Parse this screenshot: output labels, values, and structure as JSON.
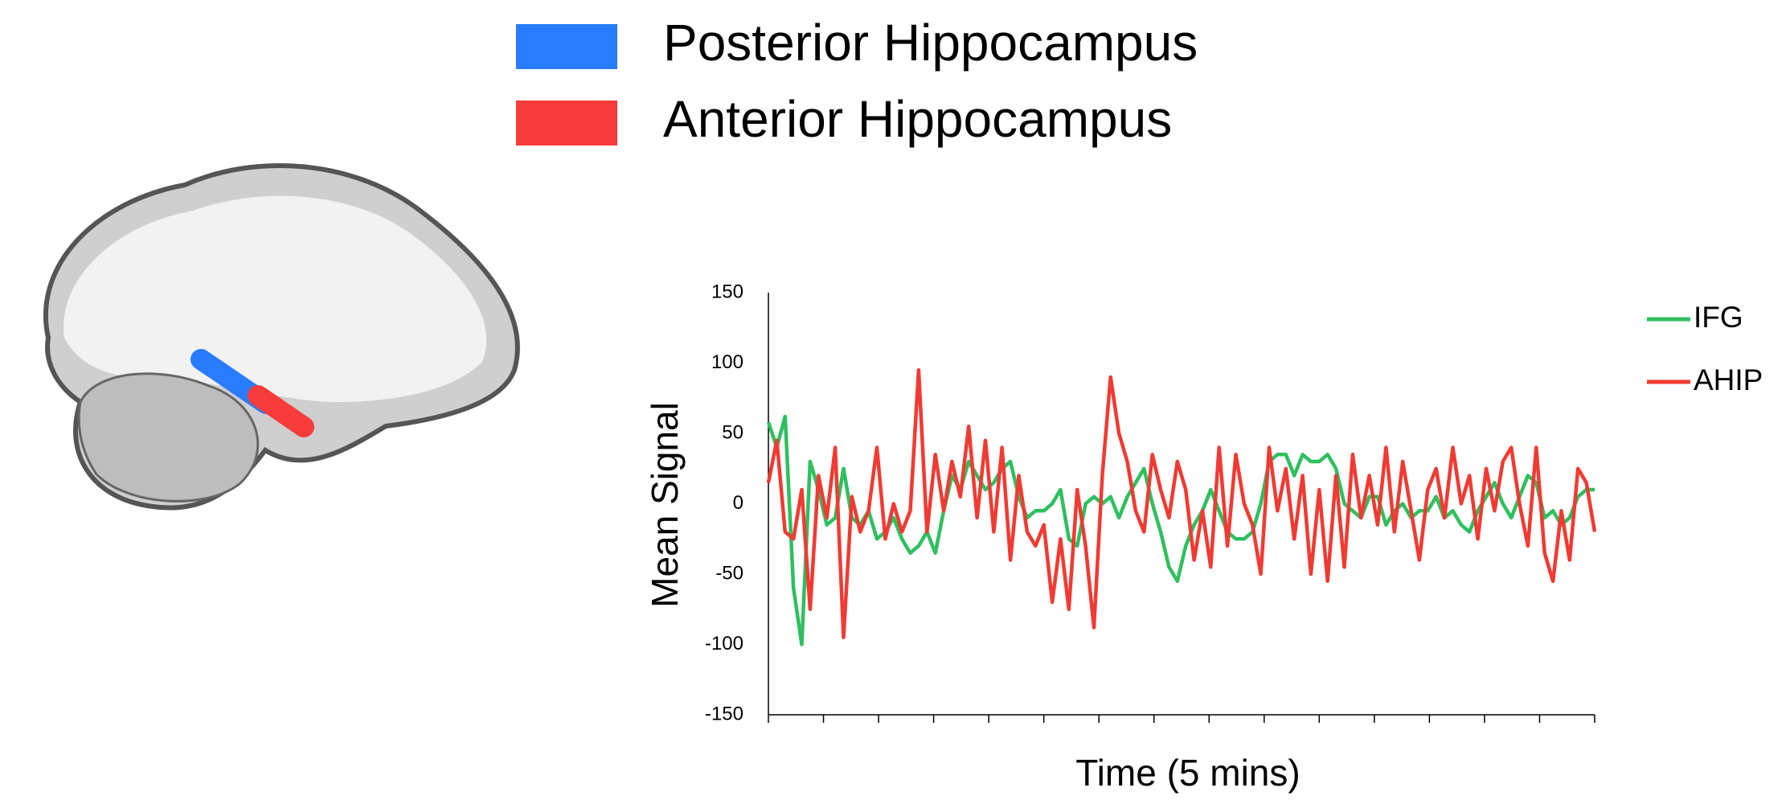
{
  "legend": [
    {
      "label": "Posterior Hippocampus",
      "color": "#2a7cff"
    },
    {
      "label": "Anterior Hippocampus",
      "color": "#f73b3b"
    }
  ],
  "chart_data": {
    "type": "line",
    "y_label": "Mean Signal",
    "x_label": "Time (5 mins)",
    "ylim": [
      -150,
      150
    ],
    "yticks": [
      -150,
      -100,
      -50,
      0,
      50,
      100,
      150
    ],
    "grid": false,
    "legend_position": "right",
    "series": [
      {
        "name": "IFG",
        "color": "#2fbf5f",
        "values": [
          58,
          40,
          62,
          -60,
          -100,
          30,
          10,
          -15,
          -10,
          25,
          -10,
          -15,
          -5,
          -25,
          -20,
          -10,
          -25,
          -35,
          -30,
          -20,
          -35,
          -5,
          20,
          10,
          30,
          20,
          10,
          15,
          25,
          30,
          5,
          -10,
          -5,
          -5,
          0,
          10,
          -25,
          -30,
          0,
          5,
          0,
          5,
          -10,
          5,
          15,
          25,
          0,
          -20,
          -45,
          -55,
          -30,
          -15,
          -5,
          10,
          -5,
          -20,
          -25,
          -25,
          -20,
          0,
          30,
          35,
          35,
          20,
          35,
          30,
          30,
          35,
          25,
          0,
          -5,
          -10,
          5,
          5,
          -15,
          -5,
          0,
          -10,
          -5,
          -5,
          5,
          -10,
          -5,
          -15,
          -20,
          -5,
          5,
          15,
          0,
          -10,
          5,
          20,
          15,
          -10,
          -5,
          -15,
          -10,
          5,
          10,
          10
        ]
      },
      {
        "name": "AHIP",
        "color": "#f23a32",
        "values": [
          15,
          45,
          -20,
          -25,
          10,
          -75,
          20,
          -10,
          40,
          -95,
          5,
          -20,
          -5,
          40,
          -25,
          0,
          -20,
          -5,
          95,
          -20,
          35,
          -5,
          30,
          5,
          55,
          -10,
          45,
          -20,
          40,
          -40,
          20,
          -20,
          -30,
          -15,
          -70,
          -25,
          -75,
          10,
          -30,
          -88,
          20,
          90,
          50,
          30,
          -5,
          -20,
          35,
          10,
          -10,
          30,
          10,
          -40,
          -5,
          -45,
          40,
          -30,
          35,
          0,
          -15,
          -50,
          40,
          -5,
          25,
          -25,
          20,
          -50,
          10,
          -55,
          20,
          -45,
          35,
          -10,
          20,
          -15,
          40,
          -20,
          30,
          -5,
          -40,
          10,
          25,
          -10,
          40,
          0,
          20,
          -25,
          25,
          -5,
          30,
          40,
          0,
          -30,
          40,
          -35,
          -55,
          -5,
          -40,
          25,
          15,
          -20
        ]
      }
    ]
  }
}
